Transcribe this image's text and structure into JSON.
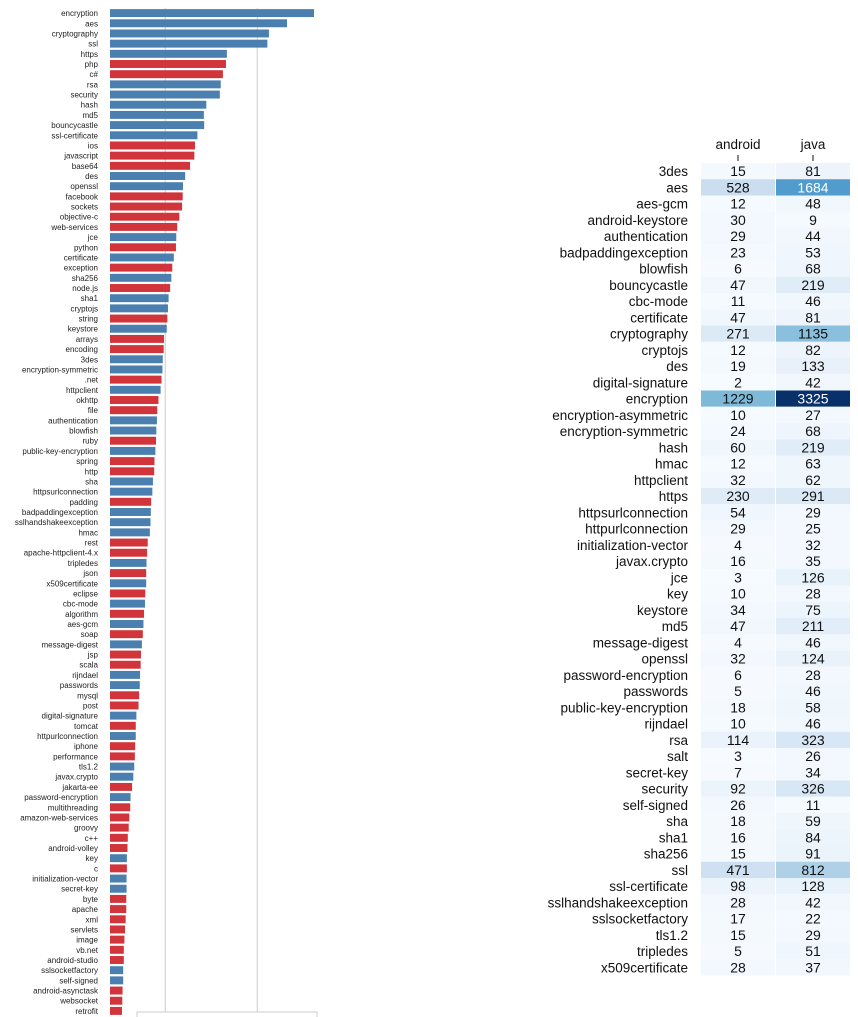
{
  "chart_data": [
    {
      "type": "bar",
      "orientation": "horizontal",
      "colors": {
        "java": "#4a7fb0",
        "other": "#d1343b"
      },
      "categories": [
        "encryption",
        "aes",
        "cryptography",
        "ssl",
        "https",
        "php",
        "c#",
        "rsa",
        "security",
        "hash",
        "md5",
        "bouncycastle",
        "ssl-certificate",
        "ios",
        "javascript",
        "base64",
        "des",
        "openssl",
        "facebook",
        "sockets",
        "objective-c",
        "web-services",
        "jce",
        "python",
        "certificate",
        "exception",
        "sha256",
        "node.js",
        "sha1",
        "cryptojs",
        "string",
        "keystore",
        "arrays",
        "encoding",
        "3des",
        "encryption-symmetric",
        ".net",
        "httpclient",
        "okhttp",
        "file",
        "authentication",
        "blowfish",
        "ruby",
        "public-key-encryption",
        "spring",
        "http",
        "sha",
        "httpsurlconnection",
        "padding",
        "badpaddingexception",
        "sslhandshakeexception",
        "hmac",
        "rest",
        "apache-httpclient-4.x",
        "tripledes",
        "json",
        "x509certificate",
        "eclipse",
        "cbc-mode",
        "algorithm",
        "aes-gcm",
        "soap",
        "message-digest",
        "jsp",
        "scala",
        "rijndael",
        "passwords",
        "mysql",
        "post",
        "digital-signature",
        "tomcat",
        "httpurlconnection",
        "iphone",
        "performance",
        "tls1.2",
        "javax.crypto",
        "jakarta-ee",
        "password-encryption",
        "multithreading",
        "amazon-web-services",
        "groovy",
        "c++",
        "android-volley",
        "key",
        "c",
        "initialization-vector",
        "secret-key",
        "byte",
        "apache",
        "xml",
        "servlets",
        "image",
        "vb.net",
        "android-studio",
        "sslsocketfactory",
        "self-signed",
        "android-asynctask",
        "websocket",
        "retrofit"
      ],
      "values": [
        3325,
        2885,
        2590,
        2565,
        1905,
        1890,
        1840,
        1805,
        1790,
        1570,
        1530,
        1535,
        1425,
        1385,
        1375,
        1305,
        1225,
        1190,
        1185,
        1175,
        1130,
        1095,
        1080,
        1075,
        1040,
        1015,
        1000,
        980,
        955,
        945,
        935,
        925,
        880,
        875,
        860,
        855,
        840,
        825,
        790,
        770,
        765,
        755,
        750,
        740,
        725,
        720,
        700,
        690,
        670,
        665,
        660,
        650,
        615,
        605,
        595,
        590,
        590,
        575,
        570,
        555,
        545,
        535,
        520,
        505,
        500,
        490,
        485,
        475,
        465,
        430,
        420,
        420,
        410,
        405,
        395,
        380,
        360,
        335,
        330,
        315,
        305,
        290,
        285,
        275,
        275,
        270,
        270,
        265,
        265,
        255,
        245,
        235,
        225,
        225,
        215,
        215,
        205,
        200,
        195
      ],
      "series_group": [
        "java",
        "java",
        "java",
        "java",
        "java",
        "other",
        "other",
        "java",
        "java",
        "java",
        "java",
        "java",
        "java",
        "other",
        "other",
        "other",
        "java",
        "java",
        "other",
        "other",
        "other",
        "other",
        "java",
        "other",
        "java",
        "other",
        "java",
        "other",
        "java",
        "java",
        "other",
        "java",
        "other",
        "other",
        "java",
        "java",
        "other",
        "java",
        "other",
        "other",
        "java",
        "java",
        "other",
        "java",
        "other",
        "other",
        "java",
        "java",
        "other",
        "java",
        "java",
        "java",
        "other",
        "other",
        "java",
        "other",
        "java",
        "other",
        "java",
        "other",
        "java",
        "other",
        "java",
        "other",
        "other",
        "java",
        "java",
        "other",
        "other",
        "java",
        "other",
        "java",
        "other",
        "other",
        "java",
        "java",
        "other",
        "java",
        "other",
        "other",
        "other",
        "other",
        "other",
        "java",
        "other",
        "java",
        "java",
        "other",
        "other",
        "other",
        "other",
        "other",
        "other",
        "other",
        "java",
        "java",
        "other",
        "other",
        "other"
      ],
      "xlim": [
        0,
        3500
      ],
      "grid_x": [
        900,
        2400
      ]
    },
    {
      "type": "heatmap",
      "columns": [
        "android",
        "java"
      ],
      "rows": [
        "3des",
        "aes",
        "aes-gcm",
        "android-keystore",
        "authentication",
        "badpaddingexception",
        "blowfish",
        "bouncycastle",
        "cbc-mode",
        "certificate",
        "cryptography",
        "cryptojs",
        "des",
        "digital-signature",
        "encryption",
        "encryption-asymmetric",
        "encryption-symmetric",
        "hash",
        "hmac",
        "httpclient",
        "https",
        "httpsurlconnection",
        "httpurlconnection",
        "initialization-vector",
        "javax.crypto",
        "jce",
        "key",
        "keystore",
        "md5",
        "message-digest",
        "openssl",
        "password-encryption",
        "passwords",
        "public-key-encryption",
        "rijndael",
        "rsa",
        "salt",
        "secret-key",
        "security",
        "self-signed",
        "sha",
        "sha1",
        "sha256",
        "ssl",
        "ssl-certificate",
        "sslhandshakeexception",
        "sslsocketfactory",
        "tls1.2",
        "tripledes",
        "x509certificate"
      ],
      "values": [
        [
          15,
          81
        ],
        [
          528,
          1684
        ],
        [
          12,
          48
        ],
        [
          30,
          9
        ],
        [
          29,
          44
        ],
        [
          23,
          53
        ],
        [
          6,
          68
        ],
        [
          47,
          219
        ],
        [
          11,
          46
        ],
        [
          47,
          81
        ],
        [
          271,
          1135
        ],
        [
          12,
          82
        ],
        [
          19,
          133
        ],
        [
          2,
          42
        ],
        [
          1229,
          3325
        ],
        [
          10,
          27
        ],
        [
          24,
          68
        ],
        [
          60,
          219
        ],
        [
          12,
          63
        ],
        [
          32,
          62
        ],
        [
          230,
          291
        ],
        [
          54,
          29
        ],
        [
          29,
          25
        ],
        [
          4,
          32
        ],
        [
          16,
          35
        ],
        [
          3,
          126
        ],
        [
          10,
          28
        ],
        [
          34,
          75
        ],
        [
          47,
          211
        ],
        [
          4,
          46
        ],
        [
          32,
          124
        ],
        [
          6,
          28
        ],
        [
          5,
          46
        ],
        [
          18,
          58
        ],
        [
          10,
          46
        ],
        [
          114,
          323
        ],
        [
          3,
          26
        ],
        [
          7,
          34
        ],
        [
          92,
          326
        ],
        [
          26,
          11
        ],
        [
          18,
          59
        ],
        [
          16,
          84
        ],
        [
          15,
          91
        ],
        [
          471,
          812
        ],
        [
          98,
          128
        ],
        [
          28,
          42
        ],
        [
          17,
          22
        ],
        [
          15,
          29
        ],
        [
          5,
          51
        ],
        [
          28,
          37
        ]
      ],
      "vmax": 3325,
      "colormap": "Blues"
    }
  ]
}
